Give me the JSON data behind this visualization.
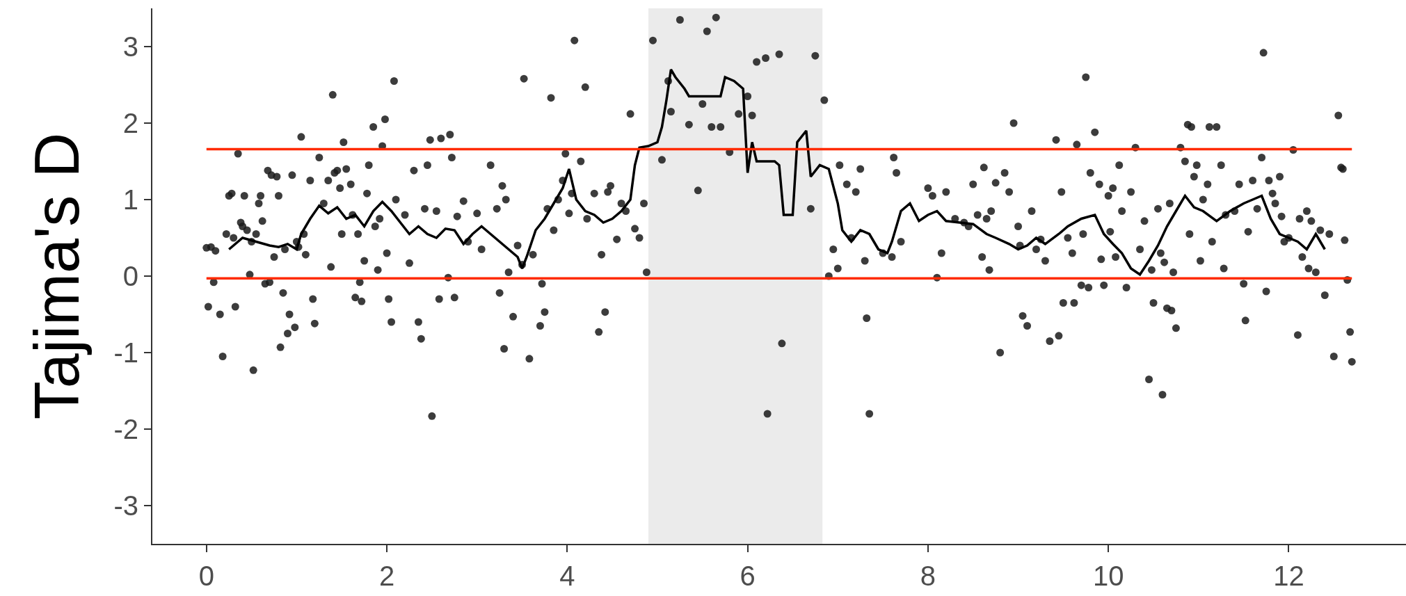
{
  "chart_data": {
    "type": "scatter",
    "ylabel": "Tajima's D",
    "xlim": [
      -0.6,
      13.3
    ],
    "xticks": [
      0,
      2,
      4,
      6,
      8,
      10,
      12
    ],
    "ylim": [
      -3.5,
      3.5
    ],
    "yticks": [
      -3,
      -2,
      -1,
      0,
      1,
      2,
      3
    ],
    "grid": false,
    "marker": "circle",
    "series": [
      {
        "color": "#1a1a1a",
        "x": [
          0.0,
          0.05,
          0.02,
          0.08,
          0.1,
          0.15,
          0.18,
          0.22,
          0.25,
          0.28,
          0.3,
          0.32,
          0.35,
          0.38,
          0.4,
          0.42,
          0.45,
          0.48,
          0.5,
          0.52,
          0.55,
          0.58,
          0.6,
          0.62,
          0.65,
          0.68,
          0.7,
          0.72,
          0.75,
          0.78,
          0.8,
          0.82,
          0.85,
          0.87,
          0.9,
          0.92,
          0.95,
          0.98,
          1.0,
          1.02,
          1.05,
          1.08,
          1.1,
          1.15,
          1.18,
          1.2,
          1.25,
          1.3,
          1.35,
          1.38,
          1.4,
          1.42,
          1.45,
          1.48,
          1.5,
          1.52,
          1.55,
          1.6,
          1.62,
          1.65,
          1.68,
          1.7,
          1.72,
          1.75,
          1.78,
          1.8,
          1.85,
          1.87,
          1.9,
          1.92,
          1.95,
          1.98,
          2.0,
          2.02,
          2.05,
          2.08,
          2.1,
          2.2,
          2.25,
          2.3,
          2.35,
          2.38,
          2.42,
          2.45,
          2.48,
          2.5,
          2.55,
          2.58,
          2.6,
          2.68,
          2.7,
          2.72,
          2.75,
          2.78,
          2.85,
          2.9,
          3.0,
          3.05,
          3.15,
          3.22,
          3.25,
          3.28,
          3.3,
          3.32,
          3.35,
          3.4,
          3.45,
          3.5,
          3.52,
          3.58,
          3.62,
          3.7,
          3.72,
          3.75,
          3.78,
          3.82,
          3.85,
          3.9,
          3.95,
          3.98,
          4.02,
          4.05,
          4.08,
          4.15,
          4.2,
          4.22,
          4.3,
          4.35,
          4.38,
          4.42,
          4.45,
          4.48,
          4.55,
          4.6,
          4.65,
          4.7,
          4.75,
          4.8,
          4.85,
          4.88,
          4.95,
          5.05,
          5.12,
          5.15,
          5.25,
          5.35,
          5.45,
          5.5,
          5.55,
          5.6,
          5.65,
          5.7,
          5.8,
          5.9,
          6.0,
          6.05,
          6.1,
          6.2,
          6.22,
          6.35,
          6.38,
          6.7,
          6.75,
          6.85,
          6.9,
          6.95,
          7.0,
          7.02,
          7.1,
          7.15,
          7.2,
          7.25,
          7.3,
          7.32,
          7.35,
          7.5,
          7.6,
          7.62,
          7.65,
          7.7,
          8.0,
          8.05,
          8.1,
          8.15,
          8.2,
          8.3,
          8.4,
          8.45,
          8.5,
          8.55,
          8.6,
          8.62,
          8.65,
          8.68,
          8.7,
          8.75,
          8.8,
          8.85,
          8.9,
          8.95,
          9.0,
          9.02,
          9.05,
          9.1,
          9.15,
          9.2,
          9.25,
          9.3,
          9.35,
          9.42,
          9.45,
          9.48,
          9.5,
          9.55,
          9.6,
          9.62,
          9.65,
          9.7,
          9.72,
          9.75,
          9.78,
          9.8,
          9.85,
          9.9,
          9.92,
          9.95,
          10.0,
          10.02,
          10.05,
          10.08,
          10.12,
          10.15,
          10.2,
          10.25,
          10.3,
          10.35,
          10.4,
          10.45,
          10.48,
          10.5,
          10.55,
          10.58,
          10.6,
          10.62,
          10.65,
          10.68,
          10.7,
          10.72,
          10.75,
          10.8,
          10.85,
          10.88,
          10.9,
          10.92,
          10.95,
          10.98,
          11.02,
          11.05,
          11.1,
          11.12,
          11.15,
          11.2,
          11.25,
          11.28,
          11.3,
          11.4,
          11.45,
          11.5,
          11.52,
          11.55,
          11.6,
          11.65,
          11.7,
          11.72,
          11.75,
          11.78,
          11.82,
          11.85,
          11.9,
          11.92,
          11.95,
          12.0,
          12.05,
          12.1,
          12.12,
          12.15,
          12.2,
          12.22,
          12.25,
          12.3,
          12.35,
          12.4,
          12.45,
          12.5,
          12.55,
          12.58,
          12.6,
          12.62,
          12.65,
          12.68,
          12.7
        ],
        "values": [
          0.37,
          0.38,
          -0.4,
          -0.08,
          0.33,
          -0.5,
          -1.05,
          0.55,
          1.05,
          1.08,
          0.5,
          -0.4,
          1.6,
          0.7,
          0.65,
          1.05,
          0.6,
          0.02,
          0.45,
          -1.23,
          0.55,
          0.95,
          1.05,
          0.72,
          -0.1,
          1.38,
          -0.08,
          1.32,
          0.25,
          1.3,
          1.05,
          -0.93,
          -0.22,
          0.35,
          -0.75,
          -0.5,
          1.32,
          -0.67,
          0.45,
          0.38,
          1.82,
          0.55,
          0.28,
          1.25,
          -0.3,
          -0.62,
          1.55,
          0.95,
          1.25,
          0.12,
          2.37,
          1.35,
          1.38,
          1.15,
          0.55,
          1.75,
          1.4,
          1.2,
          0.8,
          -0.28,
          0.55,
          -0.08,
          -0.33,
          0.2,
          1.08,
          1.45,
          1.95,
          0.65,
          0.08,
          0.75,
          1.7,
          2.05,
          0.3,
          -0.3,
          -0.6,
          2.55,
          1.0,
          0.8,
          0.17,
          1.38,
          -0.6,
          -0.82,
          0.88,
          1.45,
          1.78,
          -1.83,
          0.85,
          -0.3,
          1.8,
          -0.02,
          1.85,
          1.55,
          -0.28,
          0.78,
          0.98,
          0.45,
          0.82,
          0.35,
          1.45,
          0.88,
          -0.22,
          1.18,
          -0.95,
          1.0,
          0.05,
          -0.53,
          0.4,
          0.15,
          2.58,
          -1.08,
          0.28,
          -0.65,
          -0.1,
          -0.47,
          0.88,
          2.33,
          0.6,
          1.0,
          1.25,
          1.6,
          0.82,
          1.08,
          3.08,
          1.5,
          2.47,
          0.75,
          1.08,
          -0.73,
          0.28,
          -0.47,
          1.1,
          1.18,
          0.48,
          0.95,
          0.85,
          2.12,
          0.62,
          0.5,
          0.95,
          0.05,
          3.08,
          1.52,
          2.55,
          2.15,
          3.35,
          1.98,
          1.12,
          2.25,
          3.2,
          1.95,
          3.38,
          1.95,
          1.62,
          2.12,
          2.35,
          2.1,
          2.8,
          2.85,
          -1.8,
          2.9,
          -0.88,
          0.88,
          2.88,
          2.3,
          0.0,
          0.35,
          0.1,
          1.45,
          1.2,
          0.5,
          1.1,
          1.4,
          0.2,
          -0.55,
          -1.8,
          0.3,
          0.25,
          1.55,
          1.35,
          0.45,
          1.15,
          1.05,
          -0.02,
          0.3,
          1.1,
          0.75,
          0.7,
          0.65,
          1.2,
          0.8,
          0.25,
          1.42,
          0.75,
          0.08,
          0.85,
          1.22,
          -1.0,
          1.35,
          1.1,
          2.0,
          0.65,
          0.4,
          -0.52,
          -0.65,
          0.85,
          0.35,
          0.48,
          0.2,
          -0.85,
          1.78,
          -0.78,
          1.1,
          -0.35,
          0.5,
          0.3,
          -0.35,
          1.72,
          -0.12,
          0.55,
          2.6,
          -0.15,
          1.35,
          1.88,
          1.2,
          0.22,
          -0.12,
          1.05,
          0.58,
          1.15,
          0.25,
          1.45,
          0.85,
          -0.15,
          1.1,
          1.68,
          0.35,
          0.72,
          -1.35,
          0.08,
          -0.35,
          0.88,
          0.3,
          -1.55,
          0.18,
          -0.42,
          0.95,
          -0.45,
          0.05,
          -0.68,
          1.68,
          1.5,
          1.98,
          0.55,
          1.95,
          1.3,
          1.45,
          0.2,
          1.0,
          1.2,
          1.95,
          0.45,
          1.95,
          1.45,
          0.1,
          0.8,
          0.85,
          1.2,
          -0.1,
          -0.58,
          0.58,
          1.25,
          0.88,
          1.55,
          2.92,
          -0.2,
          1.25,
          1.08,
          0.95,
          1.3,
          0.78,
          0.45,
          0.5,
          1.65,
          -0.77,
          0.75,
          0.25,
          0.85,
          0.1,
          0.72,
          0.05,
          0.6,
          -0.25,
          0.55,
          -1.05,
          2.1,
          1.42,
          1.4,
          0.47,
          -0.05,
          -0.73,
          -1.12
        ]
      },
      {
        "type": "line",
        "color": "#000000",
        "marker": "none",
        "line_style": "solid",
        "x": [
          0.25,
          0.4,
          0.55,
          0.7,
          0.8,
          0.9,
          1.0,
          1.05,
          1.15,
          1.25,
          1.35,
          1.45,
          1.55,
          1.65,
          1.75,
          1.85,
          1.95,
          2.05,
          2.15,
          2.25,
          2.35,
          2.45,
          2.55,
          2.65,
          2.75,
          2.85,
          2.95,
          3.05,
          3.15,
          3.25,
          3.35,
          3.45,
          3.5,
          3.55,
          3.65,
          3.75,
          3.85,
          3.95,
          4.02,
          4.1,
          4.2,
          4.3,
          4.4,
          4.5,
          4.6,
          4.7,
          4.75,
          4.8,
          4.9,
          5.0,
          5.05,
          5.1,
          5.15,
          5.2,
          5.3,
          5.35,
          5.5,
          5.7,
          5.75,
          5.85,
          5.95,
          6.0,
          6.05,
          6.1,
          6.2,
          6.3,
          6.35,
          6.4,
          6.5,
          6.55,
          6.65,
          6.7,
          6.8,
          6.9,
          7.0,
          7.05,
          7.15,
          7.25,
          7.35,
          7.45,
          7.55,
          7.6,
          7.7,
          7.8,
          7.9,
          8.0,
          8.1,
          8.2,
          8.35,
          8.5,
          8.65,
          8.75,
          8.9,
          9.0,
          9.1,
          9.2,
          9.3,
          9.45,
          9.55,
          9.7,
          9.85,
          9.95,
          10.05,
          10.15,
          10.25,
          10.35,
          10.45,
          10.55,
          10.65,
          10.75,
          10.85,
          10.95,
          11.05,
          11.2,
          11.35,
          11.5,
          11.6,
          11.7,
          11.8,
          11.9,
          12.0,
          12.1,
          12.2,
          12.3,
          12.4
        ],
        "values": [
          0.35,
          0.5,
          0.45,
          0.4,
          0.38,
          0.42,
          0.35,
          0.55,
          0.75,
          0.92,
          0.82,
          0.9,
          0.75,
          0.8,
          0.65,
          0.85,
          0.97,
          0.85,
          0.7,
          0.55,
          0.65,
          0.55,
          0.5,
          0.62,
          0.6,
          0.42,
          0.55,
          0.65,
          0.55,
          0.45,
          0.35,
          0.25,
          0.1,
          0.25,
          0.6,
          0.75,
          0.95,
          1.15,
          1.4,
          1.0,
          0.85,
          0.8,
          0.7,
          0.75,
          0.85,
          1.0,
          1.45,
          1.68,
          1.7,
          1.75,
          1.95,
          2.3,
          2.7,
          2.6,
          2.45,
          2.35,
          2.35,
          2.35,
          2.6,
          2.55,
          2.45,
          1.35,
          1.75,
          1.5,
          1.5,
          1.5,
          1.45,
          0.8,
          0.8,
          1.75,
          1.9,
          1.3,
          1.45,
          1.4,
          0.95,
          0.6,
          0.45,
          0.6,
          0.55,
          0.35,
          0.3,
          0.45,
          0.85,
          0.95,
          0.72,
          0.8,
          0.85,
          0.72,
          0.7,
          0.68,
          0.55,
          0.5,
          0.42,
          0.35,
          0.4,
          0.5,
          0.42,
          0.55,
          0.65,
          0.75,
          0.8,
          0.55,
          0.42,
          0.3,
          0.1,
          0.02,
          0.2,
          0.4,
          0.65,
          0.85,
          1.05,
          0.9,
          0.85,
          0.72,
          0.85,
          0.95,
          1.0,
          1.05,
          0.75,
          0.55,
          0.5,
          0.45,
          0.35,
          0.55,
          0.35
        ]
      }
    ],
    "ref_lines": [
      {
        "axis": "y",
        "value": 1.66,
        "color": "#ff2a00"
      },
      {
        "axis": "y",
        "value": -0.03,
        "color": "#ff2a00"
      }
    ],
    "bands": [
      {
        "axis": "x",
        "from": 4.9,
        "to": 6.83,
        "color": "#ebebeb"
      }
    ]
  }
}
